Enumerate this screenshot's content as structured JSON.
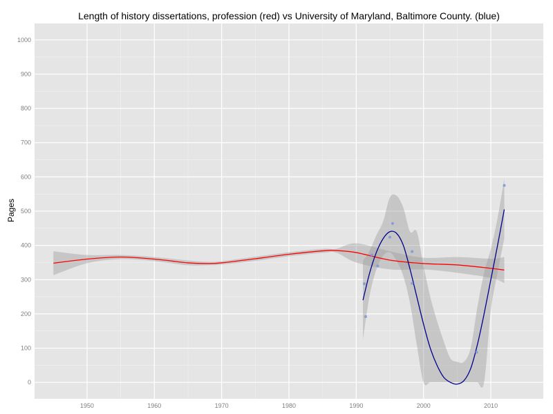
{
  "chart_data": {
    "type": "scatter",
    "title": "Length of history dissertations, profession (red) vs University of Maryland, Baltimore County. (blue)",
    "xlabel": "",
    "ylabel": "Pages",
    "xlim": [
      1942.2,
      2017.8
    ],
    "ylim": [
      -48,
      1048
    ],
    "x_ticks": [
      1950,
      1960,
      1970,
      1980,
      1990,
      2000,
      2010
    ],
    "y_ticks": [
      0,
      100,
      200,
      300,
      400,
      500,
      600,
      700,
      800,
      900,
      1000
    ],
    "grid": true,
    "legend": "none",
    "series": [
      {
        "kind": "smooth-line",
        "color": "#ff0000",
        "x": [
          1945,
          1950,
          1955,
          1960,
          1965,
          1968,
          1970,
          1975,
          1980,
          1985,
          1987,
          1990,
          1995,
          2000,
          2005,
          2010,
          2012
        ],
        "y": [
          348,
          360,
          366,
          360,
          349,
          347,
          349,
          361,
          374,
          384,
          385,
          379,
          357,
          347,
          343,
          333,
          328
        ],
        "band_lower": [
          313,
          348,
          360,
          354,
          342,
          342,
          344,
          355,
          368,
          378,
          379,
          350,
          330,
          330,
          320,
          305,
          290
        ],
        "band_upper": [
          383,
          372,
          372,
          366,
          356,
          352,
          354,
          367,
          380,
          390,
          390,
          406,
          383,
          364,
          366,
          361,
          366
        ]
      },
      {
        "kind": "smooth-line",
        "color": "#00008b",
        "x": [
          1991,
          1992,
          1993,
          1994,
          1995,
          1996,
          1997,
          1998,
          1999,
          2000,
          2001,
          2002,
          2003,
          2004,
          2005,
          2006,
          2007,
          2008,
          2009,
          2010,
          2011,
          2012
        ],
        "y": [
          240,
          320,
          380,
          420,
          440,
          435,
          400,
          330,
          250,
          170,
          100,
          50,
          15,
          0,
          -5,
          5,
          40,
          110,
          200,
          300,
          400,
          505
        ],
        "band_lower": [
          125,
          255,
          330,
          370,
          380,
          355,
          310,
          230,
          110,
          0,
          0,
          0,
          0,
          0,
          0,
          0,
          0,
          0,
          0,
          210,
          320,
          420
        ],
        "band_upper": [
          355,
          385,
          430,
          470,
          540,
          545,
          510,
          440,
          440,
          340,
          250,
          180,
          120,
          70,
          60,
          60,
          100,
          220,
          320,
          390,
          480,
          595
        ]
      },
      {
        "kind": "points",
        "color": "#7b96d6",
        "x": [
          1991.2,
          1991.4,
          1992.3,
          1993.2,
          1995.0,
          1995.4,
          1998.3,
          1998.3,
          2007.9,
          2012.0
        ],
        "y": [
          288,
          192,
          372,
          340,
          424,
          464,
          382,
          289,
          88,
          575
        ]
      }
    ]
  }
}
